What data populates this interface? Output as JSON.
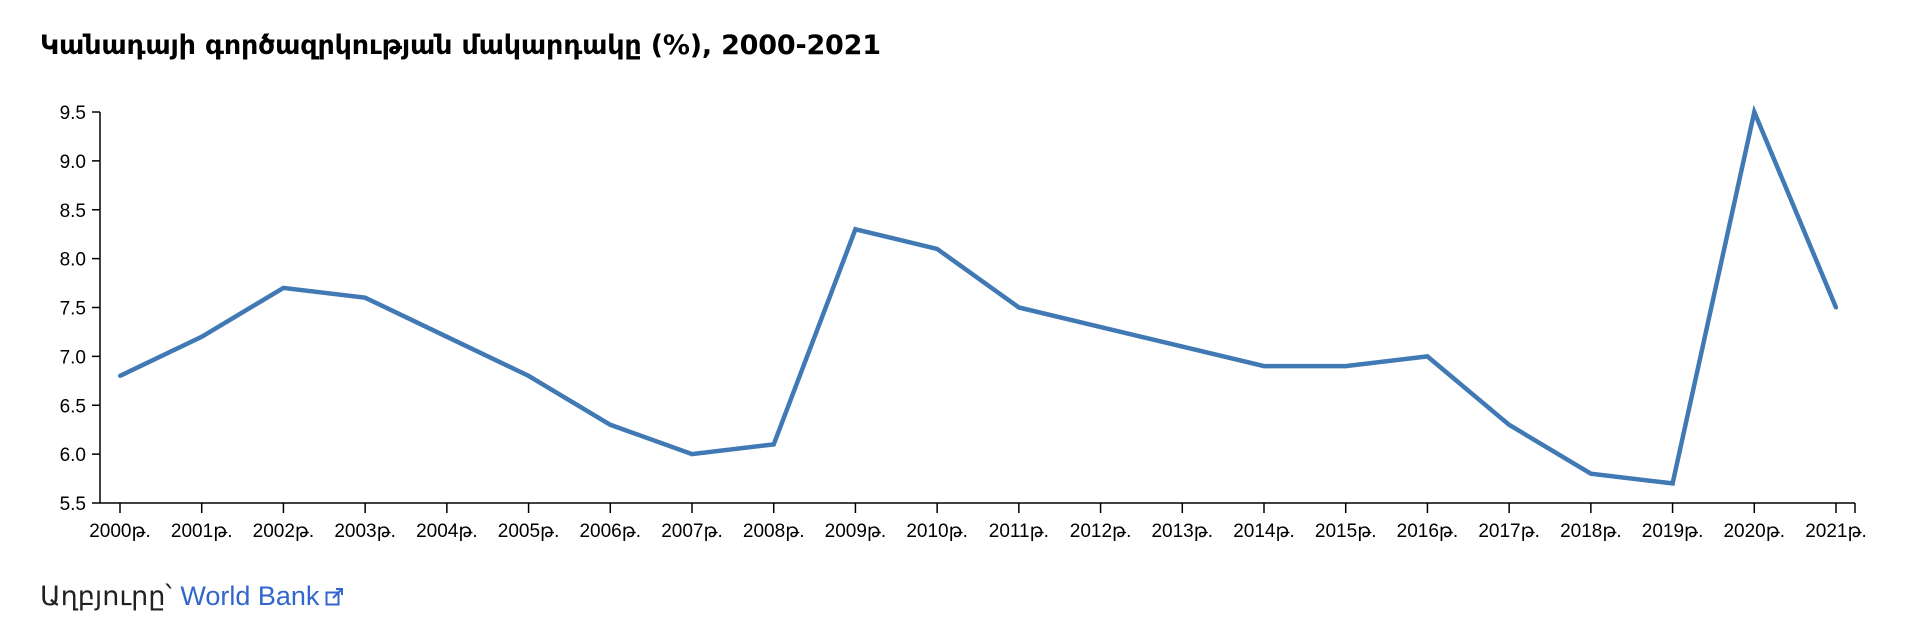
{
  "title": "Կանադայի գործազրկության մակարդակը (%), 2000-2021",
  "source": {
    "prefix": "Աղբյուրը՝ ",
    "link_label": "World Bank",
    "icon": "external-link-icon"
  },
  "colors": {
    "line": "#4179b4",
    "axis": "#000000",
    "link": "#3366cc"
  },
  "chart_data": {
    "type": "line",
    "title": "Կանադայի գործազրկության մակարդակը (%), 2000-2021",
    "xlabel": "",
    "ylabel": "",
    "categories": [
      "2000թ.",
      "2001թ.",
      "2002թ.",
      "2003թ.",
      "2004թ.",
      "2005թ.",
      "2006թ.",
      "2007թ.",
      "2008թ.",
      "2009թ.",
      "2010թ.",
      "2011թ.",
      "2012թ.",
      "2013թ.",
      "2014թ.",
      "2015թ.",
      "2016թ.",
      "2017թ.",
      "2018թ.",
      "2019թ.",
      "2020թ.",
      "2021թ."
    ],
    "series": [
      {
        "values": [
          6.8,
          7.2,
          7.7,
          7.6,
          7.2,
          6.8,
          6.3,
          6.0,
          6.1,
          8.3,
          8.1,
          7.5,
          7.3,
          7.1,
          6.9,
          6.9,
          7.0,
          6.3,
          5.8,
          5.7,
          9.5,
          7.5
        ]
      }
    ],
    "ylim": [
      5.5,
      9.5
    ],
    "yticks": [
      "5.5",
      "6.0",
      "6.5",
      "7.0",
      "7.5",
      "8.0",
      "8.5",
      "9.0",
      "9.5"
    ],
    "grid": false,
    "legend": "none"
  }
}
